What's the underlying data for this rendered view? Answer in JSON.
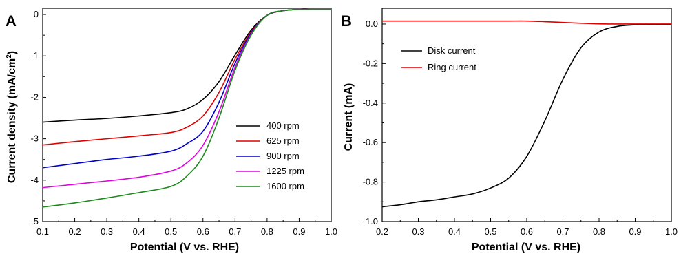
{
  "chart_data": [
    {
      "panel_label": "A",
      "type": "line",
      "xlabel": "Potential (V vs. RHE)",
      "ylabel_main": "Current density (mA/cm",
      "ylabel_sup": "2",
      "ylabel_close": ")",
      "xlim": [
        0.1,
        1.0
      ],
      "ylim": [
        -5,
        0.15
      ],
      "xticks": [
        0.1,
        0.2,
        0.3,
        0.4,
        0.5,
        0.6,
        0.7,
        0.8,
        0.9,
        1.0
      ],
      "xtick_labels": [
        "0.1",
        "0.2",
        "0.3",
        "0.4",
        "0.5",
        "0.6",
        "0.7",
        "0.8",
        "0.9",
        "1.0"
      ],
      "yticks": [
        0,
        -1,
        -2,
        -3,
        -4,
        -5
      ],
      "ytick_labels": [
        "0",
        "-1",
        "-2",
        "-3",
        "-4",
        "-5"
      ],
      "legend_position": "right",
      "x": [
        0.1,
        0.2,
        0.3,
        0.4,
        0.5,
        0.55,
        0.6,
        0.65,
        0.7,
        0.75,
        0.8,
        0.85,
        0.9,
        0.95,
        1.0
      ],
      "series": [
        {
          "name": "400 rpm",
          "color": "#000000",
          "values": [
            -2.6,
            -2.55,
            -2.51,
            -2.45,
            -2.37,
            -2.28,
            -2.05,
            -1.62,
            -0.98,
            -0.38,
            -0.02,
            0.09,
            0.12,
            0.12,
            0.12
          ]
        },
        {
          "name": "625 rpm",
          "color": "#e00000",
          "values": [
            -3.15,
            -3.07,
            -3.0,
            -2.93,
            -2.85,
            -2.72,
            -2.45,
            -1.88,
            -1.08,
            -0.42,
            -0.02,
            0.09,
            0.12,
            0.12,
            0.12
          ]
        },
        {
          "name": "900 rpm",
          "color": "#0000cc",
          "values": [
            -3.7,
            -3.6,
            -3.5,
            -3.42,
            -3.3,
            -3.12,
            -2.82,
            -2.12,
            -1.18,
            -0.45,
            -0.02,
            0.09,
            0.12,
            0.12,
            0.12
          ]
        },
        {
          "name": "1225 rpm",
          "color": "#e000e0",
          "values": [
            -4.18,
            -4.1,
            -4.02,
            -3.93,
            -3.78,
            -3.58,
            -3.16,
            -2.35,
            -1.28,
            -0.48,
            -0.02,
            0.09,
            0.12,
            0.12,
            0.12
          ]
        },
        {
          "name": "1600 rpm",
          "color": "#1a8a1a",
          "values": [
            -4.65,
            -4.55,
            -4.43,
            -4.3,
            -4.15,
            -3.9,
            -3.42,
            -2.5,
            -1.35,
            -0.5,
            -0.02,
            0.09,
            0.12,
            0.12,
            0.12
          ]
        }
      ]
    },
    {
      "panel_label": "B",
      "type": "line",
      "xlabel": "Potential (V vs. RHE)",
      "ylabel": "Current (mA)",
      "xlim": [
        0.2,
        1.0
      ],
      "ylim": [
        -1.0,
        0.08
      ],
      "xticks": [
        0.2,
        0.3,
        0.4,
        0.5,
        0.6,
        0.7,
        0.8,
        0.9,
        1.0
      ],
      "xtick_labels": [
        "0.2",
        "0.3",
        "0.4",
        "0.5",
        "0.6",
        "0.7",
        "0.8",
        "0.9",
        "1.0"
      ],
      "yticks": [
        0.0,
        -0.2,
        -0.4,
        -0.6,
        -0.8,
        -1.0
      ],
      "ytick_labels": [
        "0.0",
        "-0.2",
        "-0.4",
        "-0.6",
        "-0.8",
        "-1.0"
      ],
      "legend_position": "top-left",
      "x": [
        0.2,
        0.25,
        0.3,
        0.35,
        0.4,
        0.45,
        0.5,
        0.55,
        0.6,
        0.65,
        0.7,
        0.75,
        0.8,
        0.85,
        0.9,
        0.95,
        1.0
      ],
      "series": [
        {
          "name": "Disk current",
          "color": "#000000",
          "values": [
            -0.925,
            -0.915,
            -0.9,
            -0.89,
            -0.875,
            -0.86,
            -0.83,
            -0.78,
            -0.67,
            -0.49,
            -0.28,
            -0.12,
            -0.04,
            -0.012,
            -0.004,
            -0.002,
            -0.002
          ]
        },
        {
          "name": "Ring current",
          "color": "#e00000",
          "values": [
            0.015,
            0.015,
            0.015,
            0.015,
            0.015,
            0.015,
            0.015,
            0.015,
            0.015,
            0.012,
            0.008,
            0.004,
            0.001,
            0.0,
            0.0,
            0.0,
            0.0
          ]
        }
      ]
    }
  ]
}
